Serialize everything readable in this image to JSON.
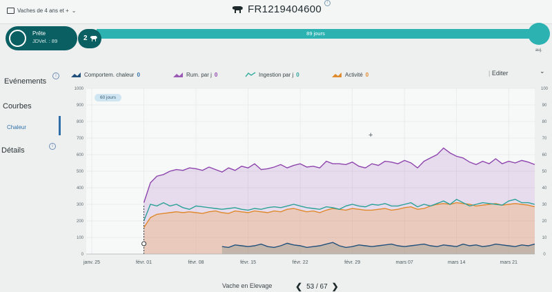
{
  "header": {
    "herd_filter": "Vaches de 4 ans et +",
    "cow_id": "FR1219404600",
    "info": "i"
  },
  "status": {
    "state": "Prête",
    "jdvel": "JDVel. : 89",
    "lactation": "2",
    "progress_label": "89 jours",
    "today_label": "auj."
  },
  "sidebar": {
    "events": "Evénements",
    "curves": "Courbes",
    "heat": "Chaleur",
    "details": "Détails",
    "info": "i"
  },
  "legend": [
    {
      "label": "Comportem. chaleur",
      "count": "0",
      "color": "#1f5b8a"
    },
    {
      "label": "Rum. par j",
      "count": "0",
      "color": "#9b59b6"
    },
    {
      "label": "Ingestion par j",
      "count": "0",
      "color": "#3aaf9f"
    },
    {
      "label": "Activité",
      "count": "0",
      "color": "#e08a2e"
    }
  ],
  "toolbar": {
    "edit": "Editer",
    "menu": "⌄"
  },
  "chart_badge": "60 jours",
  "colors": {
    "teal_dark": "#0a5f62",
    "teal": "#2db2b2",
    "rum": "#8e44ad",
    "ing": "#2aa198",
    "act": "#e0892b",
    "heat": "#1f4f7a"
  },
  "chart_data": {
    "type": "line",
    "x_ticks": [
      "janv. 25",
      "févr. 01",
      "févr. 08",
      "févr. 15",
      "févr. 22",
      "févr. 29",
      "mars 07",
      "mars 14",
      "mars 21"
    ],
    "y_left_ticks": [
      "0",
      "100",
      "200",
      "300",
      "400",
      "500",
      "600",
      "700",
      "800",
      "900",
      "1000"
    ],
    "y_right_ticks": [
      "0",
      "10",
      "20",
      "30",
      "40",
      "50",
      "60",
      "70",
      "80",
      "90",
      "100"
    ],
    "ylim_left": [
      0,
      1000
    ],
    "ylim_right": [
      0,
      100
    ],
    "series": [
      {
        "name": "Rum. par j",
        "values": [
          310,
          430,
          470,
          480,
          500,
          510,
          505,
          520,
          515,
          505,
          525,
          510,
          495,
          520,
          505,
          530,
          520,
          545,
          510,
          515,
          525,
          540,
          520,
          535,
          545,
          525,
          530,
          520,
          560,
          545,
          545,
          540,
          555,
          530,
          520,
          545,
          535,
          560,
          555,
          545,
          565,
          550,
          520,
          560,
          580,
          600,
          640,
          610,
          590,
          580,
          555,
          540,
          560,
          545,
          575,
          545,
          560,
          550,
          565,
          555,
          540
        ]
      },
      {
        "name": "Ingestion par j",
        "values": [
          200,
          300,
          290,
          310,
          290,
          300,
          280,
          270,
          290,
          285,
          280,
          275,
          270,
          275,
          280,
          270,
          265,
          275,
          270,
          280,
          285,
          280,
          290,
          300,
          290,
          280,
          275,
          270,
          285,
          280,
          270,
          290,
          300,
          290,
          285,
          300,
          295,
          305,
          290,
          290,
          300,
          310,
          285,
          300,
          290,
          305,
          320,
          300,
          330,
          310,
          290,
          300,
          310,
          305,
          300,
          295,
          320,
          330,
          310,
          310,
          300
        ]
      },
      {
        "name": "Activité",
        "values": [
          160,
          220,
          240,
          245,
          250,
          255,
          250,
          255,
          250,
          245,
          255,
          260,
          250,
          245,
          260,
          255,
          250,
          260,
          255,
          250,
          260,
          255,
          270,
          275,
          265,
          255,
          260,
          250,
          265,
          275,
          270,
          265,
          275,
          270,
          265,
          265,
          270,
          275,
          265,
          270,
          280,
          285,
          270,
          275,
          290,
          300,
          305,
          300,
          310,
          305,
          300,
          290,
          295,
          300,
          305,
          295,
          300,
          305,
          300,
          295,
          285
        ]
      },
      {
        "name": "Comportem. chaleur",
        "values": [
          null,
          null,
          null,
          null,
          null,
          null,
          null,
          null,
          null,
          null,
          null,
          null,
          45,
          40,
          55,
          50,
          45,
          50,
          60,
          45,
          40,
          50,
          65,
          55,
          50,
          40,
          45,
          50,
          60,
          70,
          50,
          40,
          45,
          55,
          50,
          45,
          50,
          55,
          60,
          50,
          45,
          50,
          55,
          60,
          50,
          45,
          55,
          50,
          45,
          60,
          50,
          55,
          45,
          50,
          60,
          55,
          50,
          45,
          55,
          50,
          60
        ]
      }
    ]
  },
  "footer": {
    "state": "Vache en Elevage",
    "page": "53 / 67",
    "prev": "❮",
    "next": "❯"
  }
}
